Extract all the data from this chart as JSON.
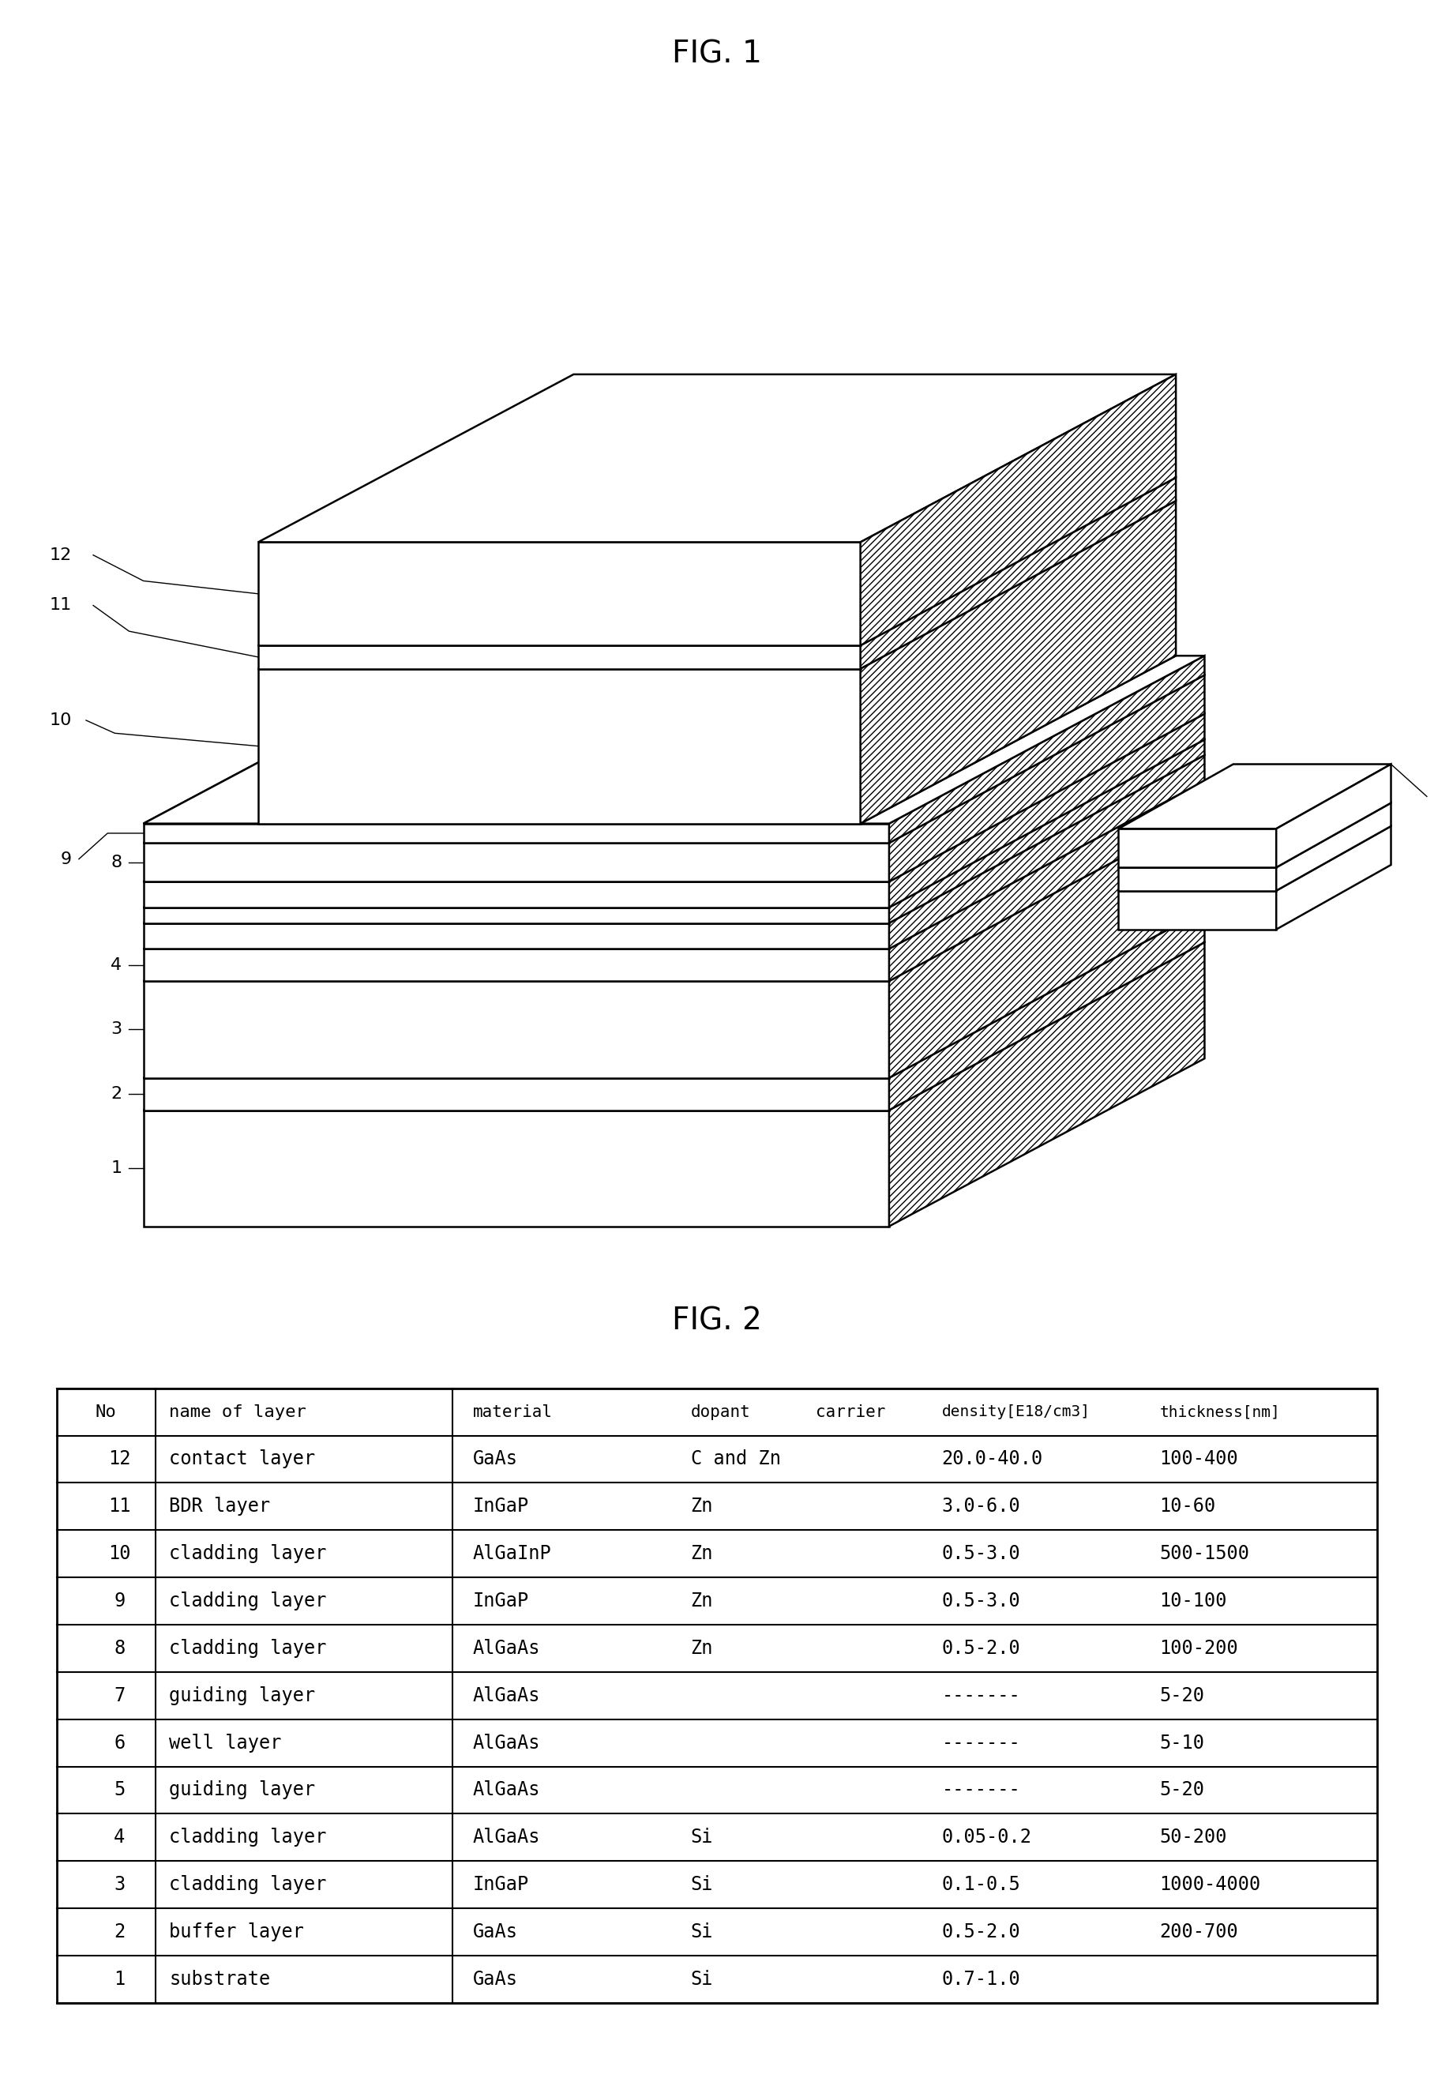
{
  "fig1_title": "FIG. 1",
  "fig2_title": "FIG. 2",
  "table_rows": [
    {
      "no": "12",
      "name": "contact layer",
      "material": "GaAs",
      "dopant": "C and Zn",
      "density": "20.0-40.0",
      "thickness": "100-400"
    },
    {
      "no": "11",
      "name": "BDR layer",
      "material": "InGaP",
      "dopant": "Zn",
      "density": "3.0-6.0",
      "thickness": "10-60"
    },
    {
      "no": "10",
      "name": "cladding layer",
      "material": "AlGaInP",
      "dopant": "Zn",
      "density": "0.5-3.0",
      "thickness": "500-1500"
    },
    {
      "no": "9",
      "name": "cladding layer",
      "material": "InGaP",
      "dopant": "Zn",
      "density": "0.5-3.0",
      "thickness": "10-100"
    },
    {
      "no": "8",
      "name": "cladding layer",
      "material": "AlGaAs",
      "dopant": "Zn",
      "density": "0.5-2.0",
      "thickness": "100-200"
    },
    {
      "no": "7",
      "name": "guiding layer",
      "material": "AlGaAs",
      "dopant": "",
      "density": "-------",
      "thickness": "5-20"
    },
    {
      "no": "6",
      "name": "well layer",
      "material": "AlGaAs",
      "dopant": "",
      "density": "-------",
      "thickness": "5-10"
    },
    {
      "no": "5",
      "name": "guiding layer",
      "material": "AlGaAs",
      "dopant": "",
      "density": "-------",
      "thickness": "5-20"
    },
    {
      "no": "4",
      "name": "cladding layer",
      "material": "AlGaAs",
      "dopant": "Si",
      "density": "0.05-0.2",
      "thickness": "50-200"
    },
    {
      "no": "3",
      "name": "cladding layer",
      "material": "InGaP",
      "dopant": "Si",
      "density": "0.1-0.5",
      "thickness": "1000-4000"
    },
    {
      "no": "2",
      "name": "buffer layer",
      "material": "GaAs",
      "dopant": "Si",
      "density": "0.5-2.0",
      "thickness": "200-700"
    },
    {
      "no": "1",
      "name": "substrate",
      "material": "GaAs",
      "dopant": "Si",
      "density": "0.7-1.0",
      "thickness": ""
    }
  ],
  "bg_color": "#ffffff",
  "line_color": "#000000"
}
